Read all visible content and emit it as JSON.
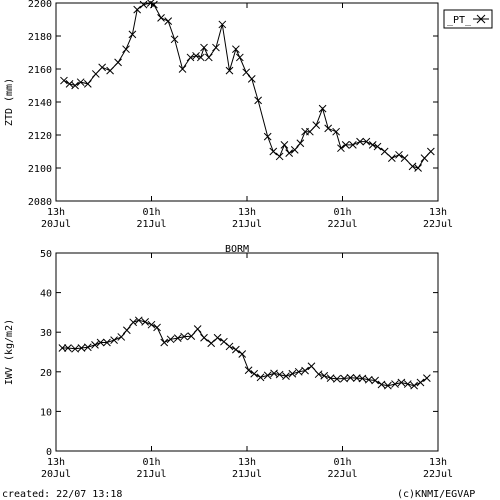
{
  "footer": {
    "created": "created: 22/07 13:18",
    "credit": "(c)KNMI/EGVAP"
  },
  "chart_data": [
    {
      "type": "line",
      "title": "",
      "xlabel": "",
      "ylabel": "ZTD (mm)",
      "ylim": [
        2080,
        2200
      ],
      "yticks": [
        2080,
        2100,
        2120,
        2140,
        2160,
        2180,
        2200
      ],
      "xlim": [
        0,
        48
      ],
      "xticks": [
        {
          "x": 0,
          "line1": "13h",
          "line2": "20Jul"
        },
        {
          "x": 12,
          "line1": "01h",
          "line2": "21Jul"
        },
        {
          "x": 24,
          "line1": "13h",
          "line2": "21Jul"
        },
        {
          "x": 36,
          "line1": "01h",
          "line2": "22Jul"
        },
        {
          "x": 48,
          "line1": "13h",
          "line2": "22Jul"
        }
      ],
      "grid": false,
      "legend": {
        "position": "top-right",
        "entries": [
          "_PT_"
        ]
      },
      "series": [
        {
          "name": "_PT_",
          "x": [
            1.0,
            1.7,
            2.4,
            3.1,
            4.0,
            5.0,
            5.8,
            6.8,
            7.8,
            8.8,
            9.6,
            10.2,
            11.0,
            11.9,
            12.3,
            13.2,
            14.1,
            14.9,
            15.9,
            16.9,
            17.6,
            18.2,
            18.6,
            19.2,
            20.1,
            20.9,
            21.8,
            22.6,
            23.1,
            23.9,
            24.6,
            25.4,
            26.6,
            27.3,
            28.1,
            28.7,
            29.3,
            30.0,
            30.7,
            31.3,
            31.9,
            32.7,
            33.5,
            34.2,
            35.2,
            35.8,
            36.4,
            37.3,
            38.2,
            39.0,
            39.8,
            40.4,
            41.3,
            42.2,
            43.1,
            43.8,
            44.8,
            45.5,
            46.3,
            47.1
          ],
          "y": [
            2153,
            2151,
            2150,
            2152,
            2151,
            2157,
            2161,
            2159,
            2164,
            2172,
            2181,
            2196,
            2199,
            2200,
            2199,
            2191,
            2189,
            2178,
            2160,
            2167,
            2168,
            2167,
            2173,
            2167,
            2173,
            2187,
            2159,
            2172,
            2167,
            2158,
            2154,
            2141,
            2119,
            2110,
            2107,
            2114,
            2109,
            2111,
            2115,
            2122,
            2122,
            2126,
            2136,
            2124,
            2122,
            2112,
            2114,
            2114,
            2116,
            2116,
            2114,
            2113,
            2110,
            2106,
            2108,
            2106,
            2101,
            2100,
            2106,
            2110
          ]
        }
      ]
    },
    {
      "type": "line",
      "title": "BORM",
      "xlabel": "",
      "ylabel": "IWV (kg/m2)",
      "ylim": [
        0,
        50
      ],
      "yticks": [
        0,
        10,
        20,
        30,
        40,
        50
      ],
      "xlim": [
        0,
        48
      ],
      "xticks": [
        {
          "x": 0,
          "line1": "13h",
          "line2": "20Jul"
        },
        {
          "x": 12,
          "line1": "01h",
          "line2": "21Jul"
        },
        {
          "x": 24,
          "line1": "13h",
          "line2": "21Jul"
        },
        {
          "x": 36,
          "line1": "01h",
          "line2": "22Jul"
        },
        {
          "x": 48,
          "line1": "13h",
          "line2": "22Jul"
        }
      ],
      "grid": false,
      "series": [
        {
          "name": "",
          "x": [
            0.8,
            1.5,
            2.4,
            3.2,
            4.0,
            4.9,
            5.6,
            6.4,
            7.3,
            8.2,
            8.9,
            9.7,
            10.4,
            11.2,
            12.0,
            12.7,
            13.6,
            14.4,
            15.3,
            16.1,
            17.0,
            17.8,
            18.6,
            19.5,
            20.3,
            21.1,
            21.8,
            22.6,
            23.4,
            24.2,
            24.9,
            25.7,
            26.6,
            27.4,
            28.1,
            28.9,
            29.7,
            30.5,
            31.3,
            32.1,
            33.0,
            33.7,
            34.5,
            35.3,
            36.2,
            37.0,
            37.8,
            38.5,
            39.3,
            40.1,
            40.9,
            41.7,
            42.6,
            43.4,
            44.2,
            45.0,
            45.8,
            46.6
          ],
          "y": [
            26.0,
            26.0,
            25.8,
            26.0,
            26.2,
            26.8,
            27.4,
            27.4,
            28.0,
            28.8,
            30.5,
            32.5,
            33.0,
            32.6,
            31.9,
            31.2,
            27.4,
            28.2,
            28.5,
            28.9,
            29.0,
            30.8,
            28.6,
            27.2,
            28.6,
            27.6,
            26.4,
            25.6,
            24.5,
            20.4,
            19.5,
            18.6,
            19.1,
            19.6,
            19.3,
            18.9,
            19.5,
            20.0,
            20.3,
            21.4,
            19.4,
            19.0,
            18.4,
            18.2,
            18.3,
            18.5,
            18.4,
            18.3,
            18.0,
            17.8,
            16.8,
            16.5,
            16.9,
            17.3,
            16.9,
            16.5,
            17.3,
            18.4
          ]
        }
      ]
    }
  ]
}
